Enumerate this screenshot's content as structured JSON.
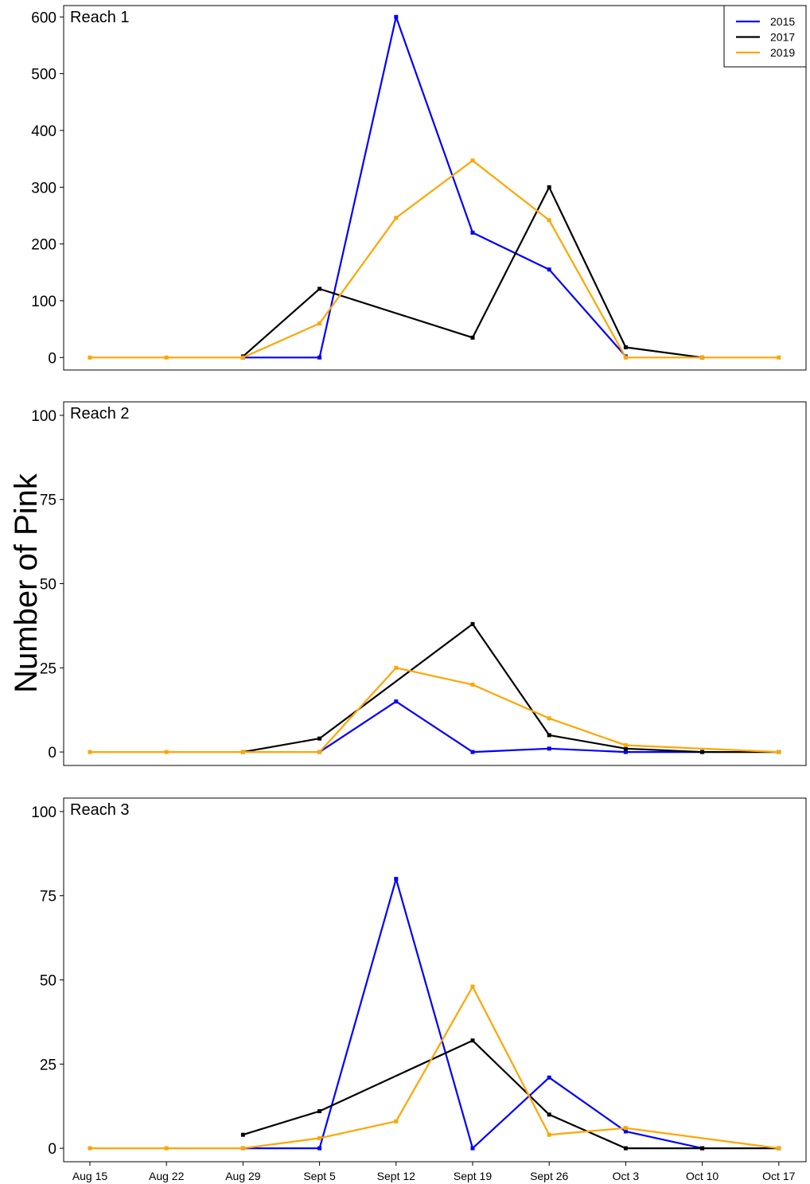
{
  "chart_data": {
    "type": "line",
    "ylabel": "Number of Pink",
    "xlabel": "",
    "categories": [
      "Aug 15",
      "Aug 22",
      "Aug 29",
      "Sept 5",
      "Sept 12",
      "Sept 19",
      "Sept 26",
      "Oct 3",
      "Oct 10",
      "Oct 17"
    ],
    "legend": {
      "placement": "top-right",
      "entries": [
        {
          "name": "2015",
          "color": "#0000ff"
        },
        {
          "name": "2017",
          "color": "#000000"
        },
        {
          "name": "2019",
          "color": "#ffa500"
        }
      ]
    },
    "grid": false,
    "panels": [
      {
        "title": "Reach 1",
        "ylim": [
          -22,
          620
        ],
        "yticks": [
          0,
          100,
          200,
          300,
          400,
          500,
          600
        ],
        "series": [
          {
            "name": "2015",
            "color": "#0000ff",
            "values": [
              null,
              null,
              0,
              0,
              600,
              220,
              155,
              2,
              null,
              null
            ]
          },
          {
            "name": "2017",
            "color": "#000000",
            "values": [
              null,
              null,
              2,
              121,
              null,
              35,
              300,
              18,
              0,
              null
            ]
          },
          {
            "name": "2019",
            "color": "#ffa500",
            "values": [
              0,
              0,
              0,
              60,
              246,
              347,
              242,
              0,
              0,
              0
            ]
          }
        ]
      },
      {
        "title": "Reach 2",
        "ylim": [
          -4,
          104
        ],
        "yticks": [
          0,
          25,
          50,
          75,
          100
        ],
        "series": [
          {
            "name": "2015",
            "color": "#0000ff",
            "values": [
              null,
              null,
              null,
              0,
              15,
              0,
              1,
              0,
              0,
              null
            ]
          },
          {
            "name": "2017",
            "color": "#000000",
            "values": [
              null,
              null,
              0,
              4,
              null,
              38,
              5,
              1,
              0,
              0
            ]
          },
          {
            "name": "2019",
            "color": "#ffa500",
            "values": [
              0,
              0,
              0,
              0,
              25,
              20,
              10,
              2,
              null,
              0
            ]
          }
        ]
      },
      {
        "title": "Reach 3",
        "ylim": [
          -4,
          104
        ],
        "yticks": [
          0,
          25,
          50,
          75,
          100
        ],
        "series": [
          {
            "name": "2015",
            "color": "#0000ff",
            "values": [
              null,
              null,
              0,
              0,
              80,
              0,
              21,
              5,
              0,
              null
            ]
          },
          {
            "name": "2017",
            "color": "#000000",
            "values": [
              null,
              null,
              4,
              11,
              null,
              32,
              10,
              0,
              0,
              0
            ]
          },
          {
            "name": "2019",
            "color": "#ffa500",
            "values": [
              0,
              0,
              0,
              3,
              8,
              48,
              4,
              6,
              null,
              0
            ]
          }
        ]
      }
    ]
  }
}
